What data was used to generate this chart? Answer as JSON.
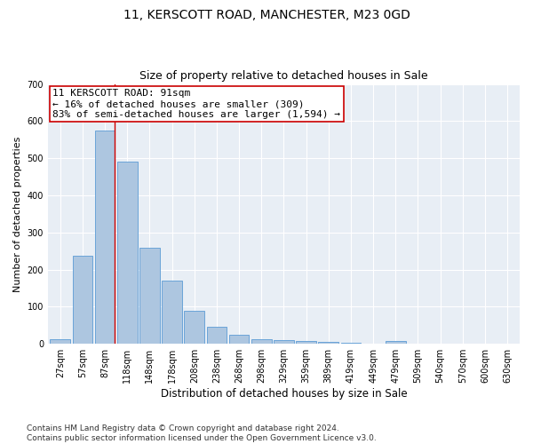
{
  "title": "11, KERSCOTT ROAD, MANCHESTER, M23 0GD",
  "subtitle": "Size of property relative to detached houses in Sale",
  "xlabel": "Distribution of detached houses by size in Sale",
  "ylabel": "Number of detached properties",
  "bar_labels": [
    "27sqm",
    "57sqm",
    "87sqm",
    "118sqm",
    "148sqm",
    "178sqm",
    "208sqm",
    "238sqm",
    "268sqm",
    "298sqm",
    "329sqm",
    "359sqm",
    "389sqm",
    "419sqm",
    "449sqm",
    "479sqm",
    "509sqm",
    "540sqm",
    "570sqm",
    "600sqm",
    "630sqm"
  ],
  "bar_values": [
    12,
    238,
    575,
    490,
    258,
    170,
    88,
    46,
    24,
    13,
    11,
    8,
    5,
    4,
    0,
    7,
    0,
    0,
    0,
    0,
    0
  ],
  "bar_color": "#adc6e0",
  "bar_edge_color": "#5b9bd5",
  "annotation_text": "11 KERSCOTT ROAD: 91sqm\n← 16% of detached houses are smaller (309)\n83% of semi-detached houses are larger (1,594) →",
  "vline_x_index": 2,
  "vline_color": "#cc0000",
  "ylim": [
    0,
    700
  ],
  "yticks": [
    0,
    100,
    200,
    300,
    400,
    500,
    600,
    700
  ],
  "plot_bg_color": "#e8eef5",
  "grid_color": "#ffffff",
  "footer_text": "Contains HM Land Registry data © Crown copyright and database right 2024.\nContains public sector information licensed under the Open Government Licence v3.0.",
  "title_fontsize": 10,
  "subtitle_fontsize": 9,
  "xlabel_fontsize": 8.5,
  "ylabel_fontsize": 8,
  "annotation_fontsize": 8,
  "footer_fontsize": 6.5,
  "tick_fontsize": 7
}
